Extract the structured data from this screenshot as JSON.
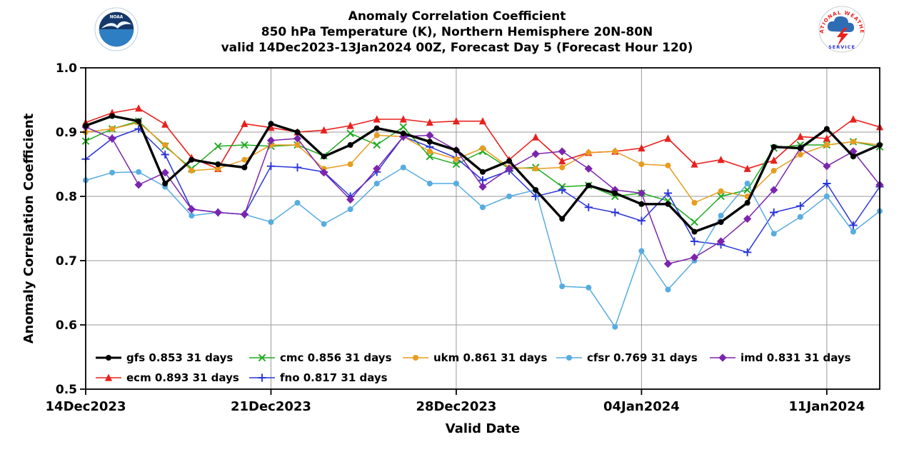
{
  "header": {
    "title_line1": "Anomaly Correlation Coefficient",
    "title_line2": "850 hPa Temperature (K), Northern Hemisphere 20N-80N",
    "title_line3": "valid 14Dec2023-13Jan2024 00Z, Forecast Day 5 (Forecast Hour 120)"
  },
  "logos": {
    "noaa_label": "NOAA",
    "nws_top_text": "NATIONAL WEATHER",
    "nws_bottom_text": "SERVICE"
  },
  "chart_data": {
    "type": "line",
    "title": "Anomaly Correlation Coefficient, 850 hPa Temperature (K), Northern Hemisphere 20N-80N, valid 14Dec2023-13Jan2024 00Z, Forecast Day 5 (Forecast Hour 120)",
    "xlabel": "Valid Date",
    "ylabel": "Anomaly Correlation Coefficient",
    "ylim": [
      0.5,
      1.0
    ],
    "yticks": [
      0.5,
      0.6,
      0.7,
      0.8,
      0.9,
      1.0
    ],
    "x_range_days": [
      1,
      31
    ],
    "n_points": 31,
    "x_tick_days": [
      1,
      8,
      15,
      22,
      29
    ],
    "x_tick_labels": [
      "14Dec2023",
      "21Dec2023",
      "28Dec2023",
      "04Jan2024",
      "11Jan2024"
    ],
    "grid": true,
    "legend_position": "lower-left-inside",
    "series": [
      {
        "name": "ecm",
        "legend_label": "ecm 0.893 31 days",
        "mean": 0.893,
        "color": "#e8211d",
        "marker": "triangle",
        "line_width": 1.6,
        "legend_row": 2,
        "legend_col": 0,
        "values": [
          0.915,
          0.93,
          0.937,
          0.912,
          0.86,
          0.843,
          0.913,
          0.907,
          0.9,
          0.903,
          0.91,
          0.92,
          0.92,
          0.915,
          0.917,
          0.917,
          0.857,
          0.892,
          0.855,
          0.868,
          0.87,
          0.875,
          0.89,
          0.85,
          0.857,
          0.843,
          0.856,
          0.893,
          0.89,
          0.92,
          0.908
        ]
      },
      {
        "name": "cmc",
        "legend_label": "cmc 0.856 31 days",
        "mean": 0.856,
        "color": "#1faa1f",
        "marker": "x",
        "line_width": 1.5,
        "legend_row": 1,
        "legend_col": 1,
        "values": [
          0.886,
          0.905,
          0.917,
          0.878,
          0.843,
          0.878,
          0.88,
          0.878,
          0.88,
          0.863,
          0.898,
          0.88,
          0.908,
          0.862,
          0.85,
          0.87,
          0.843,
          0.845,
          0.815,
          0.817,
          0.8,
          0.805,
          0.793,
          0.76,
          0.8,
          0.81,
          0.875,
          0.88,
          0.88,
          0.885,
          0.877
        ]
      },
      {
        "name": "fno",
        "legend_label": "fno 0.817 31 days",
        "mean": 0.817,
        "color": "#2a35d8",
        "marker": "plus",
        "line_width": 1.5,
        "legend_row": 2,
        "legend_col": 1,
        "values": [
          0.858,
          0.89,
          0.905,
          0.865,
          0.78,
          0.775,
          0.772,
          0.847,
          0.845,
          0.838,
          0.8,
          0.838,
          0.893,
          0.877,
          0.86,
          0.825,
          0.84,
          0.8,
          0.81,
          0.783,
          0.775,
          0.762,
          0.805,
          0.73,
          0.725,
          0.713,
          0.775,
          0.785,
          0.82,
          0.755,
          0.815
        ]
      },
      {
        "name": "ukm",
        "legend_label": "ukm 0.861 31 days",
        "mean": 0.861,
        "color": "#e89c1e",
        "marker": "circle",
        "line_width": 1.5,
        "legend_row": 1,
        "legend_col": 2,
        "values": [
          0.9,
          0.905,
          0.915,
          0.88,
          0.84,
          0.843,
          0.857,
          0.88,
          0.88,
          0.843,
          0.85,
          0.895,
          0.893,
          0.87,
          0.858,
          0.875,
          0.845,
          0.843,
          0.845,
          0.868,
          0.87,
          0.85,
          0.848,
          0.79,
          0.808,
          0.8,
          0.84,
          0.865,
          0.88,
          0.885,
          0.88
        ]
      },
      {
        "name": "cfsr",
        "legend_label": "cfsr 0.769 31 days",
        "mean": 0.769,
        "color": "#57ace0",
        "marker": "circle",
        "line_width": 1.5,
        "legend_row": 1,
        "legend_col": 3,
        "values": [
          0.825,
          0.837,
          0.838,
          0.815,
          0.77,
          0.775,
          0.772,
          0.76,
          0.79,
          0.757,
          0.78,
          0.82,
          0.845,
          0.82,
          0.82,
          0.783,
          0.8,
          0.81,
          0.66,
          0.658,
          0.597,
          0.715,
          0.655,
          0.7,
          0.77,
          0.82,
          0.742,
          0.768,
          0.8,
          0.745,
          0.777
        ]
      },
      {
        "name": "imd",
        "legend_label": "imd 0.831 31 days",
        "mean": 0.831,
        "color": "#7b24ad",
        "marker": "diamond",
        "line_width": 1.5,
        "legend_row": 1,
        "legend_col": 4,
        "values": [
          0.908,
          0.89,
          0.818,
          0.837,
          0.78,
          0.775,
          0.772,
          0.887,
          0.89,
          0.837,
          0.795,
          0.843,
          0.893,
          0.895,
          0.872,
          0.815,
          0.843,
          0.866,
          0.87,
          0.843,
          0.81,
          0.805,
          0.695,
          0.705,
          0.73,
          0.765,
          0.81,
          0.875,
          0.847,
          0.87,
          0.818
        ]
      },
      {
        "name": "gfs",
        "legend_label": "gfs 0.853 31 days",
        "mean": 0.853,
        "color": "#000000",
        "marker": "circle",
        "line_width": 3.4,
        "legend_row": 1,
        "legend_col": 0,
        "values": [
          0.91,
          0.925,
          0.917,
          0.82,
          0.857,
          0.85,
          0.845,
          0.913,
          0.9,
          0.862,
          0.88,
          0.906,
          0.898,
          0.885,
          0.872,
          0.838,
          0.855,
          0.81,
          0.765,
          0.817,
          0.805,
          0.788,
          0.788,
          0.745,
          0.76,
          0.79,
          0.877,
          0.875,
          0.905,
          0.862,
          0.88
        ]
      }
    ]
  }
}
